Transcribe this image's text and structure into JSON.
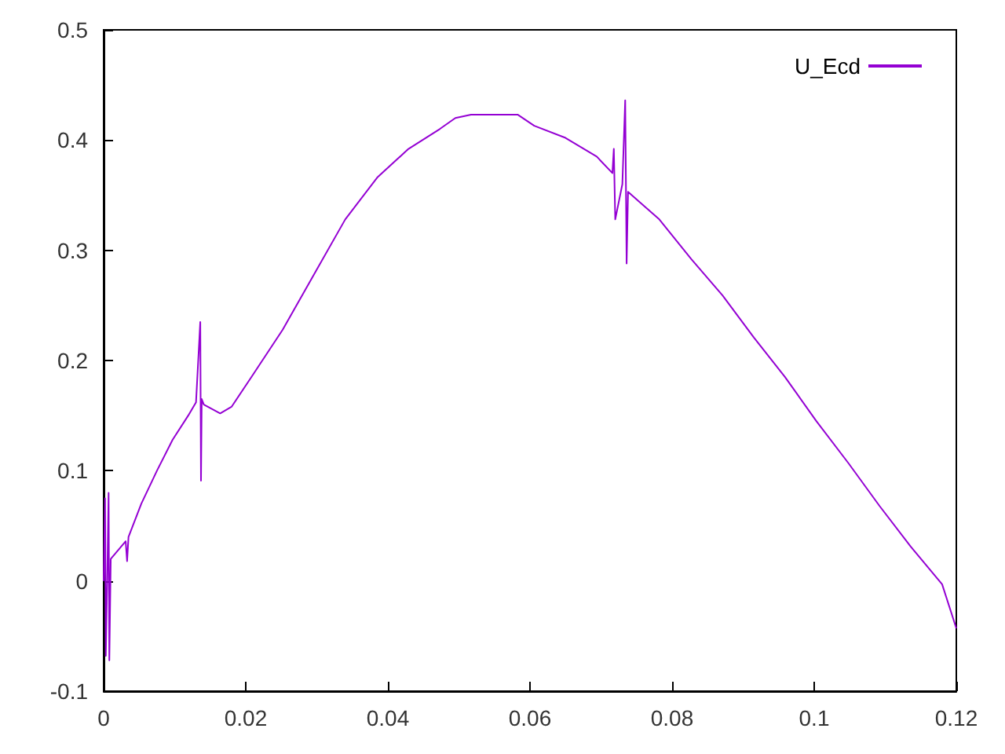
{
  "chart_data": {
    "type": "line",
    "legend": "top right",
    "grid": false,
    "marker": "none",
    "line_style": "solid",
    "xlim": [
      0,
      0.12
    ],
    "xticks": [
      0,
      0.02,
      0.04,
      0.06,
      0.08,
      0.1,
      0.12
    ],
    "ylim": [
      -0.1,
      0.5
    ],
    "yticks": [
      -0.1,
      0,
      0.1,
      0.2,
      0.3,
      0.4,
      0.5
    ],
    "series": [
      {
        "name": "U_Ecd",
        "color": "#9400d3",
        "x": [
          0,
          0.0002,
          0.0003,
          0.0005,
          0.0007,
          0.0008,
          0.001,
          0.0031,
          0.0033,
          0.0035,
          0.0053,
          0.0075,
          0.0097,
          0.0119,
          0.013,
          0.0136,
          0.0137,
          0.0138,
          0.0141,
          0.0164,
          0.018,
          0.0208,
          0.0252,
          0.0296,
          0.034,
          0.0385,
          0.0429,
          0.0473,
          0.0495,
          0.0517,
          0.0583,
          0.0606,
          0.065,
          0.0694,
          0.0716,
          0.0718,
          0.072,
          0.073,
          0.0734,
          0.0736,
          0.0738,
          0.0782,
          0.0827,
          0.0871,
          0.0915,
          0.0959,
          0.1003,
          0.1048,
          0.1092,
          0.1136,
          0.118,
          0.12
        ],
        "values": [
          0,
          0.075,
          -0.068,
          0,
          0.08,
          -0.072,
          0.02,
          0.036,
          0.018,
          0.04,
          0.07,
          0.1,
          0.128,
          0.15,
          0.162,
          0.235,
          0.091,
          0.165,
          0.16,
          0.152,
          0.158,
          0.185,
          0.228,
          0.278,
          0.328,
          0.366,
          0.392,
          0.41,
          0.42,
          0.423,
          0.423,
          0.413,
          0.402,
          0.385,
          0.37,
          0.392,
          0.328,
          0.36,
          0.436,
          0.288,
          0.353,
          0.328,
          0.292,
          0.259,
          0.221,
          0.185,
          0.145,
          0.107,
          0.068,
          0.031,
          -0.003,
          -0.043
        ]
      }
    ]
  }
}
